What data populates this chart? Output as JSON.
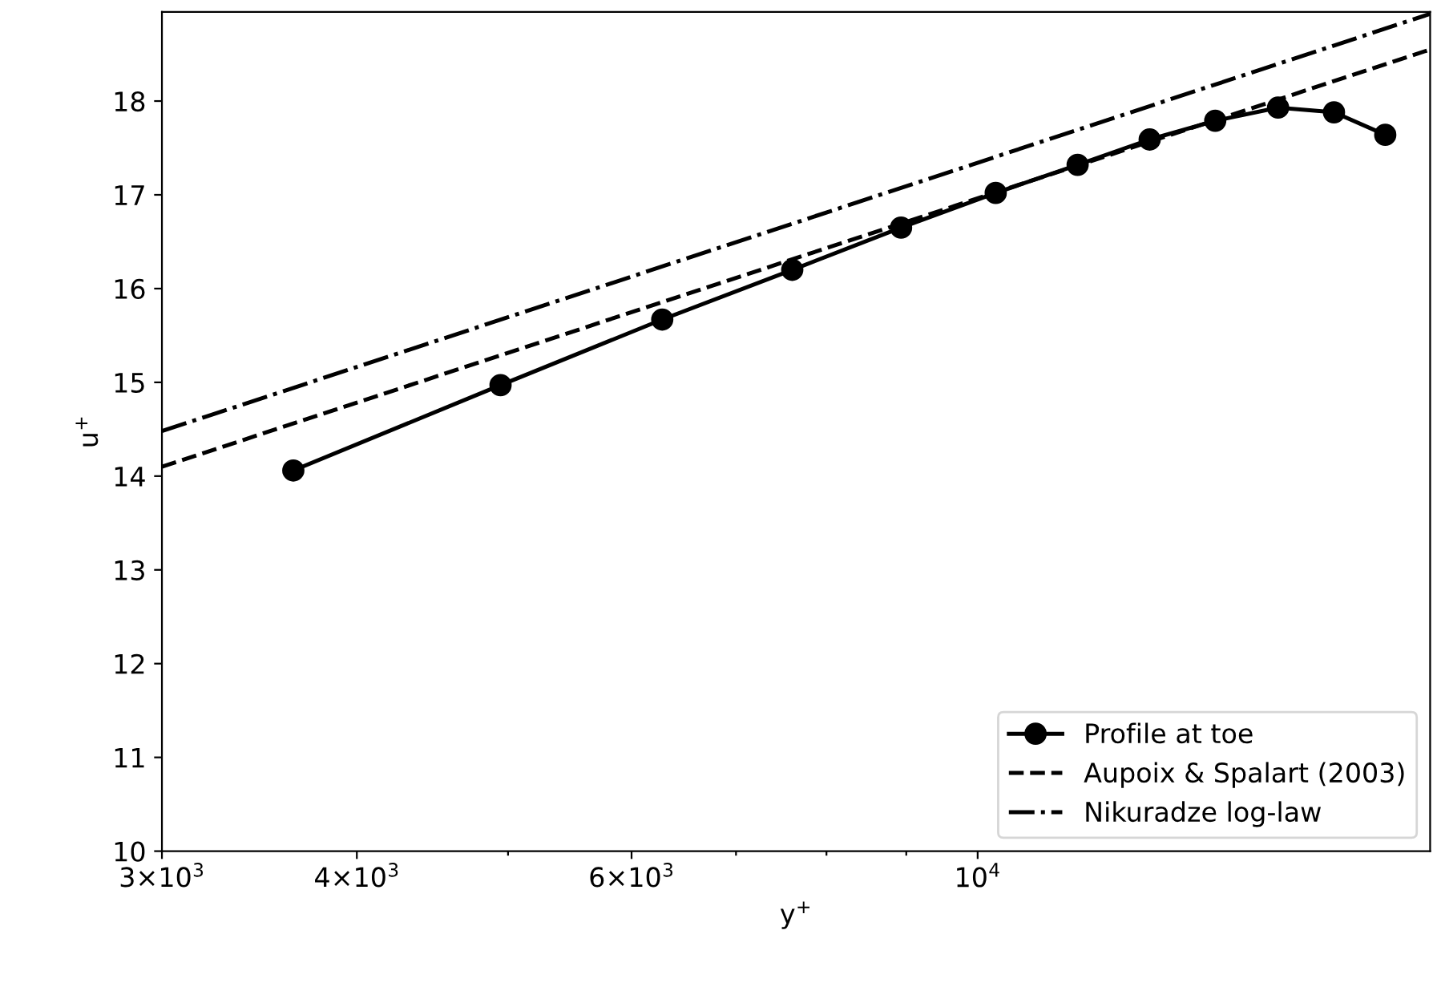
{
  "chart_data": {
    "type": "line",
    "xlabel": "y$^{+}$",
    "ylabel": "u$^{+}$",
    "log": "x",
    "xlim": [
      3000,
      19500
    ],
    "ylim": [
      10,
      18.95
    ],
    "xticks": [
      {
        "value": 3000,
        "label": "3×10$^{3}$"
      },
      {
        "value": 4000,
        "label": "4×10$^{3}$"
      },
      {
        "value": 5000,
        "label": null
      },
      {
        "value": 6000,
        "label": "6×10$^{3}$"
      },
      {
        "value": 7000,
        "label": null
      },
      {
        "value": 8000,
        "label": null
      },
      {
        "value": 9000,
        "label": null
      },
      {
        "value": 10000,
        "label": "10$^{4}$"
      }
    ],
    "yticks": [
      10,
      11,
      12,
      13,
      14,
      15,
      16,
      17,
      18
    ],
    "grid": false,
    "legend": "bottom right",
    "series": [
      {
        "name": "Profile at toe",
        "color": "#000000",
        "marker": "circle",
        "line_style": "solid",
        "x": [
          3642,
          4945,
          6278,
          7606,
          8931,
          10270,
          11590,
          12890,
          14200,
          15580,
          16920,
          18250
        ],
        "values": [
          14.06,
          14.97,
          15.67,
          16.2,
          16.65,
          17.02,
          17.32,
          17.59,
          17.79,
          17.93,
          17.88,
          17.64
        ]
      },
      {
        "name": "Aupoix & Spalart (2003)",
        "color": "#000000",
        "marker": "none",
        "line_style": "dashed",
        "x": [
          3000,
          19500
        ],
        "values": [
          14.1,
          18.55
        ]
      },
      {
        "name": "Nikuradze log-law",
        "color": "#000000",
        "marker": "none",
        "line_style": "dashdot",
        "x": [
          3000,
          19500
        ],
        "values": [
          14.48,
          18.93
        ]
      }
    ]
  }
}
